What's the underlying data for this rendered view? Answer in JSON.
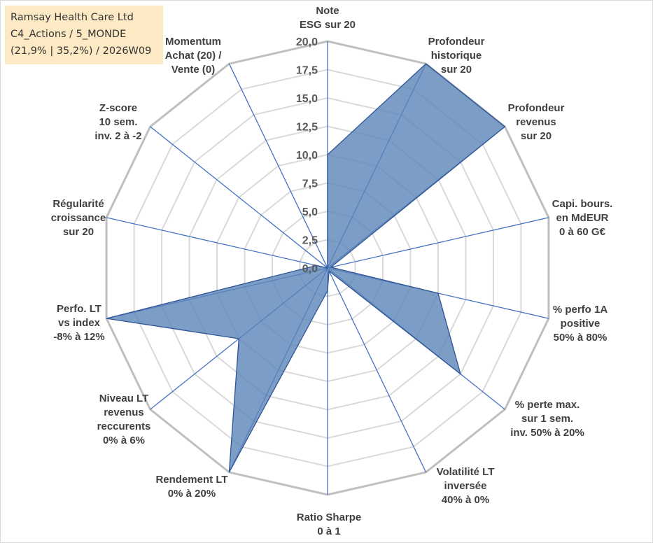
{
  "title_box": {
    "line1": "Ramsay Health Care Ltd",
    "line2": "C4_Actions / 5_MONDE",
    "line3": "(21,9% | 35,2%) / 2026W09",
    "background": "#fde9c4"
  },
  "chart_data": {
    "type": "radar",
    "title": "",
    "rlim": [
      0,
      20
    ],
    "r_ticks": [
      "0,0",
      "2,5",
      "5,0",
      "7,5",
      "10,0",
      "12,5",
      "15,0",
      "17,5",
      "20,0"
    ],
    "grid": true,
    "legend": "none",
    "colors": {
      "fill": "#5b84b8",
      "fill_opacity": 0.8,
      "stroke": "#2f5597",
      "grid_outer": "#bfbfbf",
      "grid_inner": "#d9d9d9",
      "spoke": "#4472c4"
    },
    "axes": [
      {
        "label": [
          "Note",
          "ESG sur 20"
        ],
        "value": 10.0
      },
      {
        "label": [
          "Profondeur",
          "historique",
          "sur 20"
        ],
        "value": 20.0
      },
      {
        "label": [
          "Profondeur",
          "revenus",
          "sur 20"
        ],
        "value": 20.0
      },
      {
        "label": [
          "Capi. bours.",
          "en MdEUR",
          "0 à 60 G€"
        ],
        "value": 0.3
      },
      {
        "label": [
          "% perfo 1A",
          "positive",
          "50% à 80%"
        ],
        "value": 10.0
      },
      {
        "label": [
          "% perte max.",
          "sur 1 sem.",
          "inv. 50% à 20%"
        ],
        "value": 15.0
      },
      {
        "label": [
          "Volatilité LT",
          "inversée",
          "40% à 0%"
        ],
        "value": 0.3
      },
      {
        "label": [
          "Ratio Sharpe",
          "0 à 1"
        ],
        "value": 2.0
      },
      {
        "label": [
          "Rendement LT",
          "0% à 20%"
        ],
        "value": 20.0
      },
      {
        "label": [
          "Niveau LT",
          "revenus",
          "reccurents",
          "0% à 6%"
        ],
        "value": 10.0
      },
      {
        "label": [
          "Perfo. LT",
          "vs index",
          "-8% à 12%"
        ],
        "value": 20.0
      },
      {
        "label": [
          "Régularité",
          "croissance",
          "sur 20"
        ],
        "value": 1.0
      },
      {
        "label": [
          "Z-score",
          "10 sem.",
          "inv. 2 à -2"
        ],
        "value": 0.0
      },
      {
        "label": [
          "Momentum",
          "Achat (20) /",
          "Vente (0)"
        ],
        "value": 0.0
      }
    ]
  }
}
